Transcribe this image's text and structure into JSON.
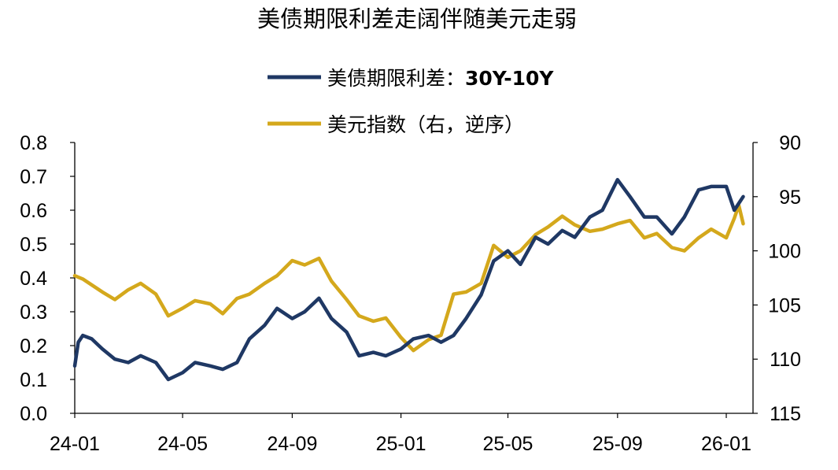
{
  "chart_data": {
    "type": "line",
    "title": "美债期限利差走阔伴随美元走弱",
    "x_ticks": [
      "24-01",
      "24-05",
      "24-09",
      "25-01",
      "25-05",
      "25-09",
      "26-01"
    ],
    "left_axis": {
      "ylim": [
        0,
        0.8
      ],
      "ticks": [
        "0.0",
        "0.1",
        "0.2",
        "0.3",
        "0.4",
        "0.5",
        "0.6",
        "0.7",
        "0.8"
      ]
    },
    "right_axis": {
      "ylim": [
        90,
        115
      ],
      "inverted": true,
      "ticks": [
        "90",
        "95",
        "100",
        "105",
        "110",
        "115"
      ]
    },
    "legend_position": "top-center",
    "series": [
      {
        "name_prefix": "美债期限利差：",
        "name_bold": "30Y-10Y",
        "axis": "left",
        "color": "#1f3864",
        "points": [
          [
            "24-01",
            0.14
          ],
          [
            "24-01-05",
            0.21
          ],
          [
            "24-01-10",
            0.23
          ],
          [
            "24-01-20",
            0.22
          ],
          [
            "24-02",
            0.19
          ],
          [
            "24-02-15",
            0.16
          ],
          [
            "24-03",
            0.15
          ],
          [
            "24-03-15",
            0.17
          ],
          [
            "24-04",
            0.15
          ],
          [
            "24-04-15",
            0.1
          ],
          [
            "24-05",
            0.12
          ],
          [
            "24-05-15",
            0.15
          ],
          [
            "24-06",
            0.14
          ],
          [
            "24-06-15",
            0.13
          ],
          [
            "24-07",
            0.15
          ],
          [
            "24-07-15",
            0.22
          ],
          [
            "24-08",
            0.26
          ],
          [
            "24-08-15",
            0.31
          ],
          [
            "24-09",
            0.28
          ],
          [
            "24-09-15",
            0.3
          ],
          [
            "24-10",
            0.34
          ],
          [
            "24-10-15",
            0.28
          ],
          [
            "24-11",
            0.24
          ],
          [
            "24-11-15",
            0.17
          ],
          [
            "24-12",
            0.18
          ],
          [
            "24-12-15",
            0.17
          ],
          [
            "25-01",
            0.19
          ],
          [
            "25-01-15",
            0.22
          ],
          [
            "25-02",
            0.23
          ],
          [
            "25-02-15",
            0.21
          ],
          [
            "25-03",
            0.23
          ],
          [
            "25-03-15",
            0.28
          ],
          [
            "25-04",
            0.35
          ],
          [
            "25-04-15",
            0.45
          ],
          [
            "25-05",
            0.48
          ],
          [
            "25-05-15",
            0.44
          ],
          [
            "25-06",
            0.52
          ],
          [
            "25-06-15",
            0.5
          ],
          [
            "25-07",
            0.54
          ],
          [
            "25-07-15",
            0.52
          ],
          [
            "25-08",
            0.58
          ],
          [
            "25-08-15",
            0.6
          ],
          [
            "25-09",
            0.69
          ],
          [
            "25-09-15",
            0.64
          ],
          [
            "25-10",
            0.58
          ],
          [
            "25-10-15",
            0.58
          ],
          [
            "25-11",
            0.53
          ],
          [
            "25-11-15",
            0.58
          ],
          [
            "25-12",
            0.66
          ],
          [
            "25-12-15",
            0.67
          ],
          [
            "26-01",
            0.67
          ],
          [
            "26-01-10",
            0.6
          ],
          [
            "26-01-20",
            0.64
          ]
        ]
      },
      {
        "name": "美元指数（右，逆序）",
        "axis": "right",
        "color": "#d4a81c",
        "points": [
          [
            "24-01",
            102.3
          ],
          [
            "24-01-10",
            102.6
          ],
          [
            "24-02",
            103.8
          ],
          [
            "24-02-15",
            104.5
          ],
          [
            "24-03",
            103.6
          ],
          [
            "24-03-15",
            103.0
          ],
          [
            "24-04",
            104.0
          ],
          [
            "24-04-15",
            106.0
          ],
          [
            "24-05",
            105.3
          ],
          [
            "24-05-15",
            104.6
          ],
          [
            "24-06",
            104.9
          ],
          [
            "24-06-15",
            105.8
          ],
          [
            "24-07",
            104.4
          ],
          [
            "24-07-15",
            104.0
          ],
          [
            "24-08",
            103.0
          ],
          [
            "24-08-15",
            102.3
          ],
          [
            "24-09",
            100.9
          ],
          [
            "24-09-15",
            101.3
          ],
          [
            "24-10",
            100.7
          ],
          [
            "24-10-15",
            102.8
          ],
          [
            "24-11",
            104.5
          ],
          [
            "24-11-15",
            106.0
          ],
          [
            "24-12",
            106.5
          ],
          [
            "24-12-15",
            106.2
          ],
          [
            "25-01",
            108.0
          ],
          [
            "25-01-15",
            109.2
          ],
          [
            "25-02",
            108.2
          ],
          [
            "25-02-15",
            107.8
          ],
          [
            "25-03",
            104.0
          ],
          [
            "25-03-15",
            103.8
          ],
          [
            "25-04",
            103.0
          ],
          [
            "25-04-15",
            99.5
          ],
          [
            "25-05",
            100.6
          ],
          [
            "25-05-15",
            100.0
          ],
          [
            "25-06",
            98.5
          ],
          [
            "25-06-15",
            97.8
          ],
          [
            "25-07",
            96.8
          ],
          [
            "25-07-15",
            97.6
          ],
          [
            "25-08",
            98.2
          ],
          [
            "25-08-15",
            98.0
          ],
          [
            "25-09",
            97.5
          ],
          [
            "25-09-15",
            97.2
          ],
          [
            "25-10",
            98.8
          ],
          [
            "25-10-15",
            98.4
          ],
          [
            "25-11",
            99.7
          ],
          [
            "25-11-15",
            100.0
          ],
          [
            "25-12",
            98.8
          ],
          [
            "25-12-15",
            98.0
          ],
          [
            "26-01",
            98.8
          ],
          [
            "26-01-10",
            97.0
          ],
          [
            "26-01-15",
            95.8
          ],
          [
            "26-01-20",
            97.5
          ]
        ]
      }
    ]
  }
}
